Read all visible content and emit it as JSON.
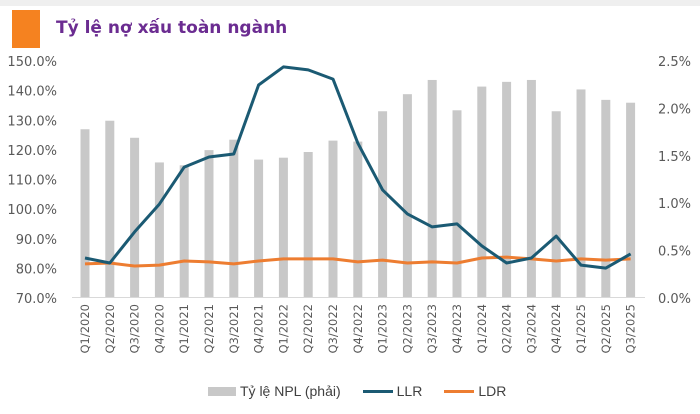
{
  "title": "Tỷ lệ nợ xấu toàn ngành",
  "colors": {
    "accent": "#f58220",
    "title": "#6b2c91",
    "npl_bar": "#c8c8c8",
    "llr": "#1b5a73",
    "ldr": "#ed7d31"
  },
  "chart_data": {
    "type": "bar+line",
    "title": "Tỷ lệ nợ xấu toàn ngành",
    "categories": [
      "Q1/2020",
      "Q2/2020",
      "Q3/2020",
      "Q4/2020",
      "Q1/2021",
      "Q2/2021",
      "Q3/2021",
      "Q4/2021",
      "Q1/2022",
      "Q2/2022",
      "Q3/2022",
      "Q4/2022",
      "Q1/2023",
      "Q2/2023",
      "Q3/2023",
      "Q4/2023",
      "Q1/2024",
      "Q2/2024",
      "Q3/2024",
      "Q4/2024",
      "Q1/2025",
      "Q2/2025",
      "Q3/2025"
    ],
    "series": [
      {
        "name": "Tỷ lệ NPL (phải)",
        "type": "bar",
        "axis": "right",
        "values": [
          1.78,
          1.87,
          1.69,
          1.43,
          1.4,
          1.56,
          1.67,
          1.46,
          1.48,
          1.54,
          1.66,
          1.65,
          1.97,
          2.15,
          2.3,
          1.98,
          2.23,
          2.28,
          2.3,
          1.97,
          2.2,
          2.09,
          2.06
        ]
      },
      {
        "name": "LLR",
        "type": "line",
        "axis": "left",
        "values": [
          83.5,
          81.8,
          92.3,
          101.7,
          114.2,
          117.6,
          118.6,
          141.9,
          148.0,
          147.0,
          143.9,
          122.3,
          106.5,
          98.4,
          94.0,
          95.0,
          87.6,
          81.8,
          83.5,
          90.9,
          81.1,
          80.1,
          84.9
        ]
      },
      {
        "name": "LDR",
        "type": "line",
        "axis": "left",
        "values": [
          81.5,
          81.8,
          80.8,
          81.1,
          82.5,
          82.2,
          81.5,
          82.5,
          83.2,
          83.2,
          83.2,
          82.2,
          82.8,
          81.8,
          82.2,
          81.8,
          83.5,
          83.8,
          83.2,
          82.5,
          83.2,
          82.8,
          83.2
        ]
      }
    ],
    "left_axis": {
      "ylim": [
        70,
        150
      ],
      "ticks": [
        "70.0%",
        "80.0%",
        "90.0%",
        "100.0%",
        "110.0%",
        "120.0%",
        "130.0%",
        "140.0%",
        "150.0%"
      ]
    },
    "right_axis": {
      "ylim": [
        0,
        2.5
      ],
      "ticks": [
        "0.0%",
        "0.5%",
        "1.0%",
        "1.5%",
        "2.0%",
        "2.5%"
      ]
    },
    "grid": false,
    "legend_position": "bottom"
  }
}
